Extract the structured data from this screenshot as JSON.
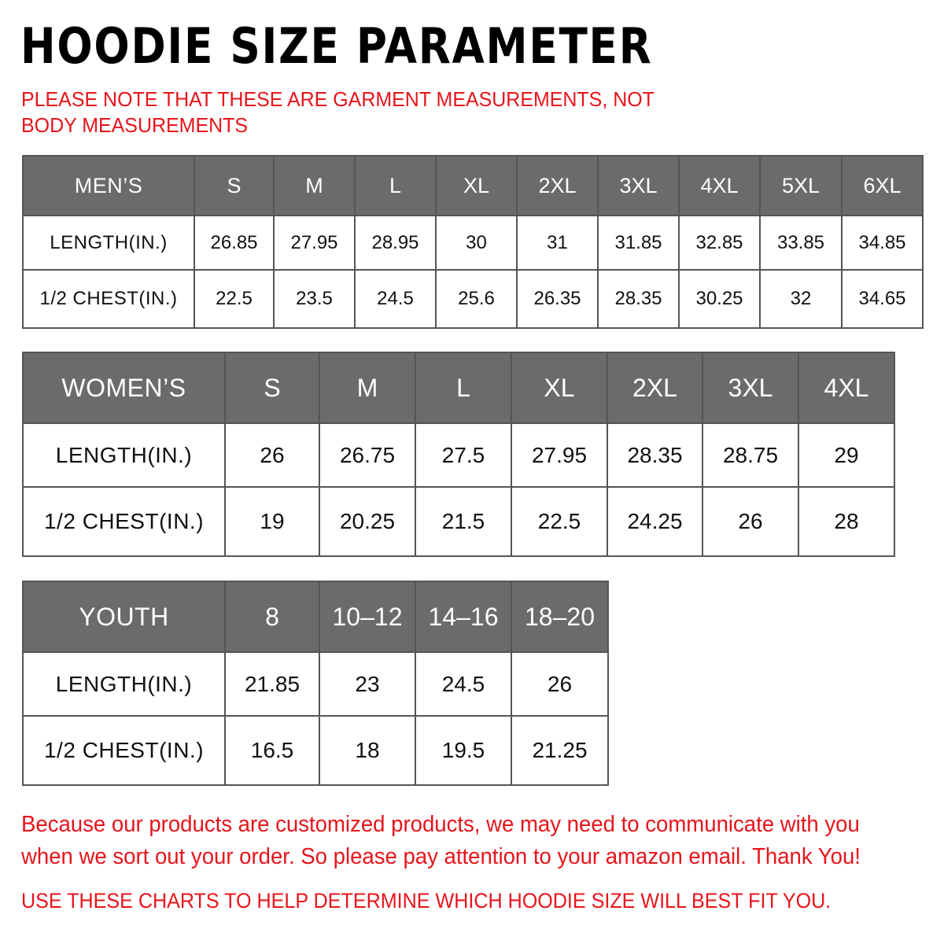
{
  "title": "HOODIE SIZE PARAMETER",
  "note": "PLEASE NOTE THAT THESE ARE GARMENT MEASUREMENTS, NOT BODY MEASUREMENTS",
  "accent_color": "#e8141b",
  "header_color": "#6b6b6b",
  "tables": {
    "men": {
      "header": [
        "MEN’S",
        "S",
        "M",
        "L",
        "XL",
        "2XL",
        "3XL",
        "4XL",
        "5XL",
        "6XL"
      ],
      "rows": [
        [
          "LENGTH(IN.)",
          "26.85",
          "27.95",
          "28.95",
          "30",
          "31",
          "31.85",
          "32.85",
          "33.85",
          "34.85"
        ],
        [
          "1/2 CHEST(IN.)",
          "22.5",
          "23.5",
          "24.5",
          "25.6",
          "26.35",
          "28.35",
          "30.25",
          "32",
          "34.65"
        ]
      ]
    },
    "women": {
      "header": [
        "WOMEN’S",
        "S",
        "M",
        "L",
        "XL",
        "2XL",
        "3XL",
        "4XL"
      ],
      "rows": [
        [
          "LENGTH(IN.)",
          "26",
          "26.75",
          "27.5",
          "27.95",
          "28.35",
          "28.75",
          "29"
        ],
        [
          "1/2 CHEST(IN.)",
          "19",
          "20.25",
          "21.5",
          "22.5",
          "24.25",
          "26",
          "28"
        ]
      ]
    },
    "youth": {
      "header": [
        "YOUTH",
        "8",
        "10–12",
        "14–16",
        "18–20"
      ],
      "rows": [
        [
          "LENGTH(IN.)",
          "21.85",
          "23",
          "24.5",
          "26"
        ],
        [
          "1/2 CHEST(IN.)",
          "16.5",
          "18",
          "19.5",
          "21.25"
        ]
      ]
    }
  },
  "footer": "Because our products are customized products, we may need to communicate with you when we sort out your order. So please pay attention to your amazon email. Thank You!",
  "footer2": "USE THESE CHARTS TO HELP DETERMINE WHICH HOODIE SIZE WILL BEST FIT YOU."
}
